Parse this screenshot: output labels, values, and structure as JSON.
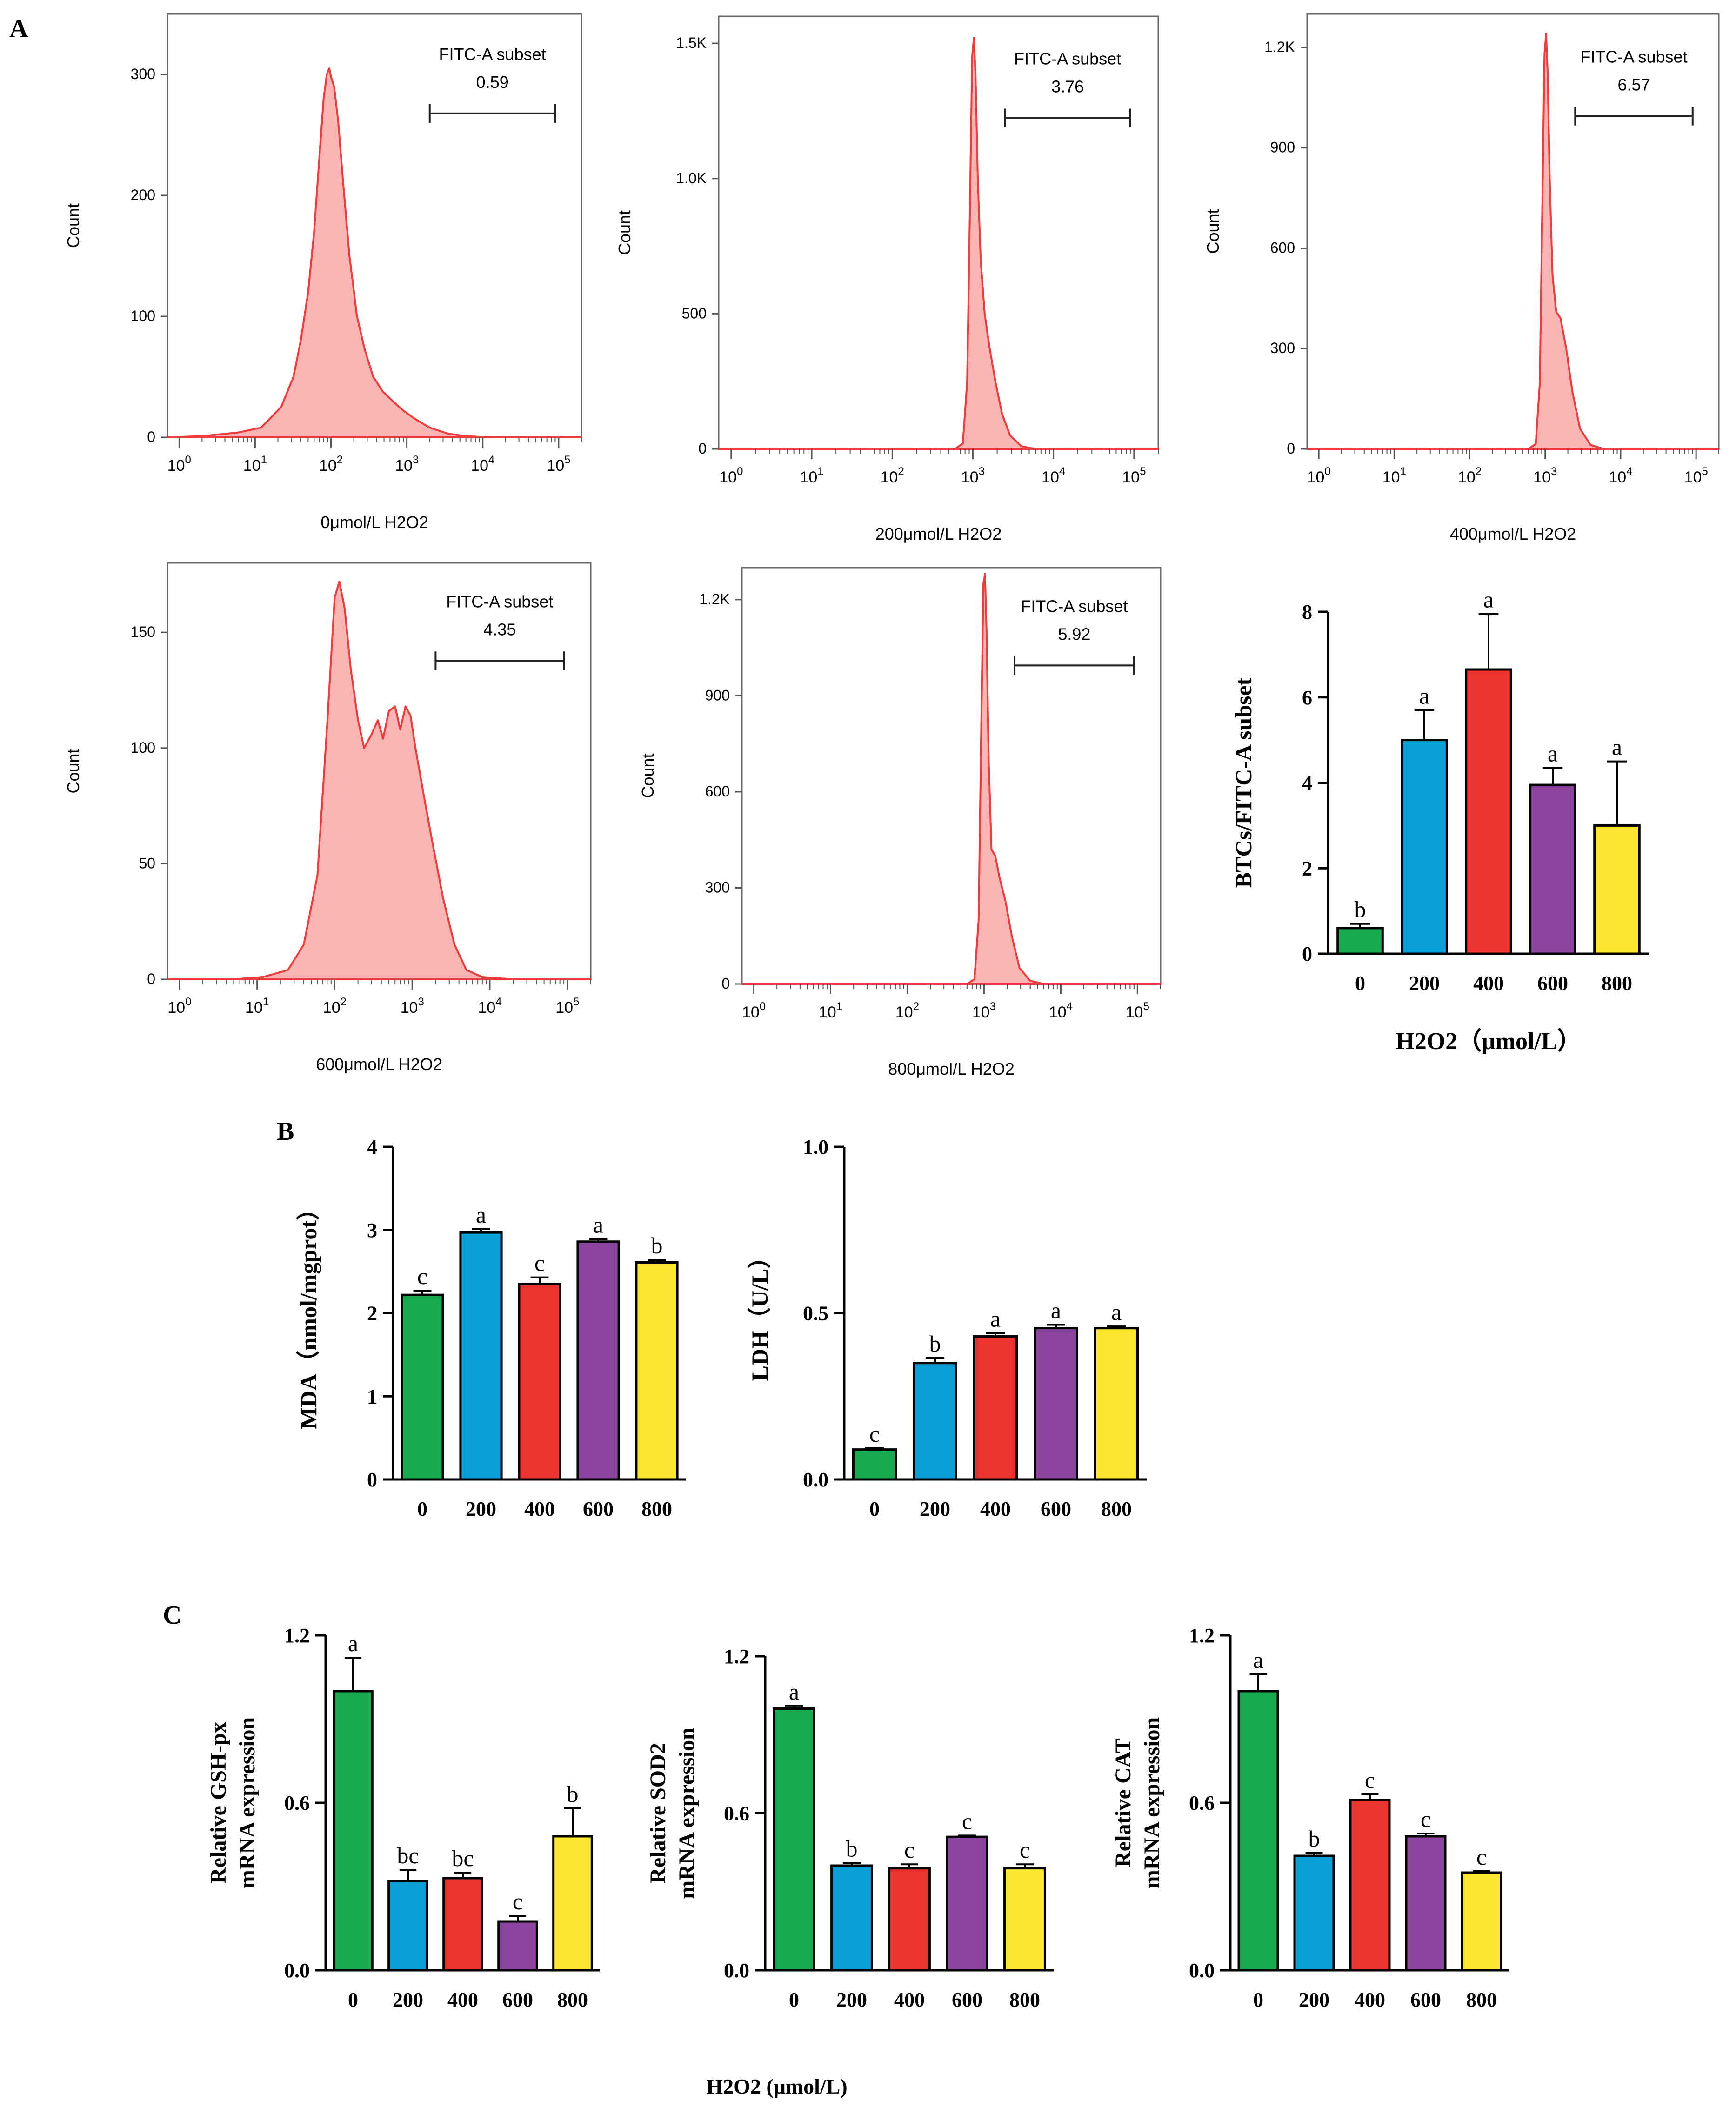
{
  "panel_labels": [
    "A",
    "B",
    "C"
  ],
  "colors": {
    "hist_fill": "#f9b4b4",
    "hist_line": "#ee3b3b",
    "bars": [
      "#1aab4f",
      "#079fd6",
      "#ee3430",
      "#8a449d",
      "#fbe72f"
    ]
  },
  "bottom_xlabel": "H2O2 (μmol/L)",
  "chart_data": [
    {
      "type": "area",
      "title": "FITC-A subset",
      "gate_value": "0.59",
      "xlabel": "0μmol/L H2O2",
      "ylabel": "Count",
      "ylim": [
        0,
        350
      ],
      "yticks": [
        0,
        100,
        200,
        300
      ],
      "ytick_labels": [
        "0",
        "100",
        "200",
        "300"
      ],
      "xscale": "log",
      "xlim": [
        0.7,
        200000
      ],
      "xtick_labels": [
        "10^0",
        "10^1",
        "10^2",
        "10^3",
        "10^4",
        "10^5"
      ],
      "gate_range": [
        2000,
        90000
      ],
      "x": [
        0.7,
        2,
        6,
        12,
        22,
        32,
        40,
        50,
        60,
        70,
        80,
        88,
        95,
        100,
        110,
        125,
        145,
        175,
        220,
        280,
        360,
        480,
        650,
        900,
        1300,
        2000,
        3500,
        6000,
        12000,
        50000,
        200000
      ],
      "y": [
        0,
        1,
        4,
        8,
        25,
        50,
        80,
        120,
        170,
        230,
        280,
        300,
        305,
        298,
        290,
        260,
        210,
        150,
        100,
        72,
        50,
        38,
        30,
        22,
        15,
        8,
        3,
        1,
        0,
        0,
        0
      ]
    },
    {
      "type": "area",
      "title": "FITC-A subset",
      "gate_value": "3.76",
      "xlabel": "200μmol/L H2O2",
      "ylabel": "Count",
      "ylim": [
        0,
        1600
      ],
      "yticks": [
        0,
        500,
        1000,
        1500
      ],
      "ytick_labels": [
        "0",
        "500",
        "1.0K",
        "1.5K"
      ],
      "xscale": "log",
      "xlim": [
        0.7,
        200000
      ],
      "xtick_labels": [
        "10^0",
        "10^1",
        "10^2",
        "10^3",
        "10^4",
        "10^5"
      ],
      "gate_range": [
        2500,
        90000
      ],
      "x": [
        0.7,
        200,
        600,
        750,
        850,
        920,
        980,
        1030,
        1080,
        1150,
        1250,
        1400,
        1600,
        1900,
        2300,
        2900,
        4000,
        6000,
        200000
      ],
      "y": [
        0,
        0,
        0,
        20,
        250,
        900,
        1450,
        1520,
        1380,
        1000,
        700,
        500,
        380,
        250,
        130,
        50,
        10,
        0,
        0
      ]
    },
    {
      "type": "area",
      "title": "FITC-A subset",
      "gate_value": "6.57",
      "xlabel": "400μmol/L H2O2",
      "ylabel": "Count",
      "ylim": [
        0,
        1300
      ],
      "yticks": [
        0,
        300,
        600,
        900,
        1200
      ],
      "ytick_labels": [
        "0",
        "300",
        "600",
        "900",
        "1.2K"
      ],
      "xscale": "log",
      "xlim": [
        0.7,
        200000
      ],
      "xtick_labels": [
        "10^0",
        "10^1",
        "10^2",
        "10^3",
        "10^4",
        "10^5"
      ],
      "gate_range": [
        2500,
        90000
      ],
      "x": [
        0.7,
        200,
        600,
        750,
        850,
        920,
        980,
        1030,
        1080,
        1150,
        1250,
        1400,
        1600,
        1900,
        2300,
        2900,
        4000,
        6000,
        200000
      ],
      "y": [
        0,
        0,
        0,
        15,
        200,
        750,
        1180,
        1240,
        1120,
        800,
        520,
        410,
        390,
        300,
        170,
        60,
        12,
        0,
        0
      ]
    },
    {
      "type": "area",
      "title": "FITC-A subset",
      "gate_value": "4.35",
      "xlabel": "600μmol/L H2O2",
      "ylabel": "Count",
      "ylim": [
        0,
        180
      ],
      "yticks": [
        0,
        50,
        100,
        150
      ],
      "ytick_labels": [
        "0",
        "50",
        "100",
        "150"
      ],
      "xscale": "log",
      "xlim": [
        0.7,
        200000
      ],
      "xtick_labels": [
        "10^0",
        "10^1",
        "10^2",
        "10^3",
        "10^4",
        "10^5"
      ],
      "gate_range": [
        2000,
        90000
      ],
      "x": [
        0.7,
        5,
        12,
        25,
        40,
        60,
        80,
        100,
        115,
        135,
        160,
        200,
        240,
        300,
        360,
        420,
        500,
        600,
        700,
        820,
        950,
        1100,
        1400,
        1800,
        2500,
        3500,
        5000,
        8000,
        20000,
        200000
      ],
      "y": [
        0,
        0,
        1,
        4,
        15,
        45,
        110,
        165,
        172,
        160,
        135,
        112,
        100,
        106,
        112,
        104,
        116,
        118,
        108,
        118,
        114,
        100,
        80,
        60,
        35,
        15,
        4,
        1,
        0,
        0
      ]
    },
    {
      "type": "area",
      "title": "FITC-A subset",
      "gate_value": "5.92",
      "xlabel": "800μmol/L H2O2",
      "ylabel": "Count",
      "ylim": [
        0,
        1300
      ],
      "yticks": [
        0,
        300,
        600,
        900,
        1200
      ],
      "ytick_labels": [
        "0",
        "300",
        "600",
        "900",
        "1.2K"
      ],
      "xscale": "log",
      "xlim": [
        0.7,
        200000
      ],
      "xtick_labels": [
        "10^0",
        "10^1",
        "10^2",
        "10^3",
        "10^4",
        "10^5"
      ],
      "gate_range": [
        2500,
        90000
      ],
      "x": [
        0.7,
        200,
        600,
        750,
        850,
        920,
        980,
        1030,
        1080,
        1150,
        1250,
        1400,
        1600,
        1900,
        2300,
        2900,
        4000,
        6000,
        200000
      ],
      "y": [
        0,
        0,
        0,
        15,
        200,
        800,
        1250,
        1280,
        1100,
        700,
        420,
        400,
        330,
        260,
        150,
        50,
        10,
        0,
        0
      ]
    },
    {
      "type": "bar",
      "categories": [
        "0",
        "200",
        "400",
        "600",
        "800"
      ],
      "values": [
        0.6,
        5.0,
        6.65,
        3.95,
        3.0
      ],
      "errors": [
        0.1,
        0.7,
        1.3,
        0.4,
        1.5
      ],
      "sig_letters": [
        "b",
        "a",
        "a",
        "a",
        "a"
      ],
      "ylabel": "BTCs/FITC-A subset",
      "xlabel": "H2O2（μmol/L）",
      "ylim": [
        0,
        8
      ],
      "yticks": [
        0,
        2,
        4,
        6,
        8
      ],
      "ytick_labels": [
        "0",
        "2",
        "4",
        "6",
        "8"
      ]
    },
    {
      "type": "bar",
      "categories": [
        "0",
        "200",
        "400",
        "600",
        "800"
      ],
      "values": [
        2.22,
        2.97,
        2.35,
        2.86,
        2.61
      ],
      "errors": [
        0.05,
        0.04,
        0.08,
        0.03,
        0.03
      ],
      "sig_letters": [
        "c",
        "a",
        "c",
        "a",
        "b"
      ],
      "ylabel": "MDA（nmol/mgprot）",
      "xlabel": "",
      "ylim": [
        0,
        4
      ],
      "yticks": [
        0,
        1,
        2,
        3,
        4
      ],
      "ytick_labels": [
        "0",
        "1",
        "2",
        "3",
        "4"
      ]
    },
    {
      "type": "bar",
      "categories": [
        "0",
        "200",
        "400",
        "600",
        "800"
      ],
      "values": [
        0.09,
        0.35,
        0.43,
        0.455,
        0.455
      ],
      "errors": [
        0.004,
        0.015,
        0.01,
        0.01,
        0.005
      ],
      "sig_letters": [
        "c",
        "b",
        "a",
        "a",
        "a"
      ],
      "ylabel": "LDH（U/L）",
      "xlabel": "",
      "ylim": [
        0,
        1.0
      ],
      "yticks": [
        0,
        0.5,
        1.0
      ],
      "ytick_labels": [
        "0.0",
        "0.5",
        "1.0"
      ]
    },
    {
      "type": "bar",
      "categories": [
        "0",
        "200",
        "400",
        "600",
        "800"
      ],
      "values": [
        1.0,
        0.32,
        0.33,
        0.175,
        0.48
      ],
      "errors": [
        0.12,
        0.04,
        0.02,
        0.02,
        0.1
      ],
      "sig_letters": [
        "a",
        "bc",
        "bc",
        "c",
        "b"
      ],
      "ylabel": [
        "Relative GSH-px",
        "mRNA expression"
      ],
      "xlabel": "",
      "ylim": [
        0,
        1.2
      ],
      "yticks": [
        0,
        0.6,
        1.2
      ],
      "ytick_labels": [
        "0.0",
        "0.6",
        "1.2"
      ]
    },
    {
      "type": "bar",
      "categories": [
        "0",
        "200",
        "400",
        "600",
        "800"
      ],
      "values": [
        1.0,
        0.4,
        0.39,
        0.51,
        0.39
      ],
      "errors": [
        0.01,
        0.01,
        0.015,
        0.005,
        0.015
      ],
      "sig_letters": [
        "a",
        "b",
        "c",
        "c",
        "c"
      ],
      "ylabel": [
        "Relative SOD2",
        "mRNA expression"
      ],
      "xlabel": "",
      "ylim": [
        0,
        1.2
      ],
      "yticks": [
        0,
        0.6,
        1.2
      ],
      "ytick_labels": [
        "0.0",
        "0.6",
        "1.2"
      ]
    },
    {
      "type": "bar",
      "categories": [
        "0",
        "200",
        "400",
        "600",
        "800"
      ],
      "values": [
        1.0,
        0.41,
        0.61,
        0.48,
        0.35
      ],
      "errors": [
        0.06,
        0.01,
        0.02,
        0.01,
        0.005
      ],
      "sig_letters": [
        "a",
        "b",
        "c",
        "c",
        "c"
      ],
      "ylabel": [
        "Relative CAT",
        "mRNA expression"
      ],
      "xlabel": "",
      "ylim": [
        0,
        1.2
      ],
      "yticks": [
        0,
        0.6,
        1.2
      ],
      "ytick_labels": [
        "0.0",
        "0.6",
        "1.2"
      ]
    }
  ]
}
